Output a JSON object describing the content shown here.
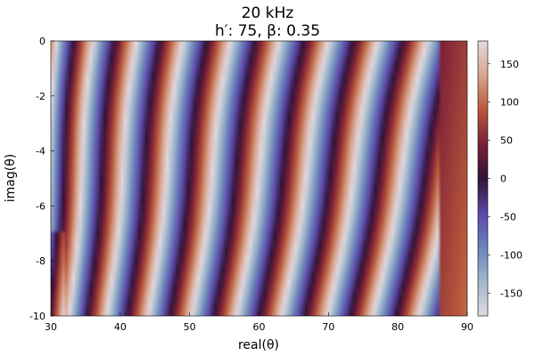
{
  "chart_data": {
    "type": "heatmap",
    "title": "20 kHz",
    "subtitle": "h′: 75, β: 0.35",
    "xlabel": "real(θ)",
    "ylabel": "imag(θ)",
    "xlim": [
      30,
      90
    ],
    "ylim": [
      -10,
      0
    ],
    "x_ticks": [
      30,
      40,
      50,
      60,
      70,
      80,
      90
    ],
    "y_ticks": [
      0,
      -2,
      -4,
      -6,
      -8,
      -10
    ],
    "colorbar": {
      "range": [
        -180,
        180
      ],
      "ticks": [
        150,
        100,
        50,
        0,
        -50,
        -100,
        -150
      ],
      "colormap": "twilight_shifted",
      "stops": [
        "#e2d9e2",
        "#a0b8c9",
        "#6a82bd",
        "#5c47a7",
        "#2f1436",
        "#7c1f37",
        "#b8583b",
        "#d9a58d",
        "#e2d9e2"
      ]
    },
    "grid": false,
    "legend": "colorbar-right"
  }
}
